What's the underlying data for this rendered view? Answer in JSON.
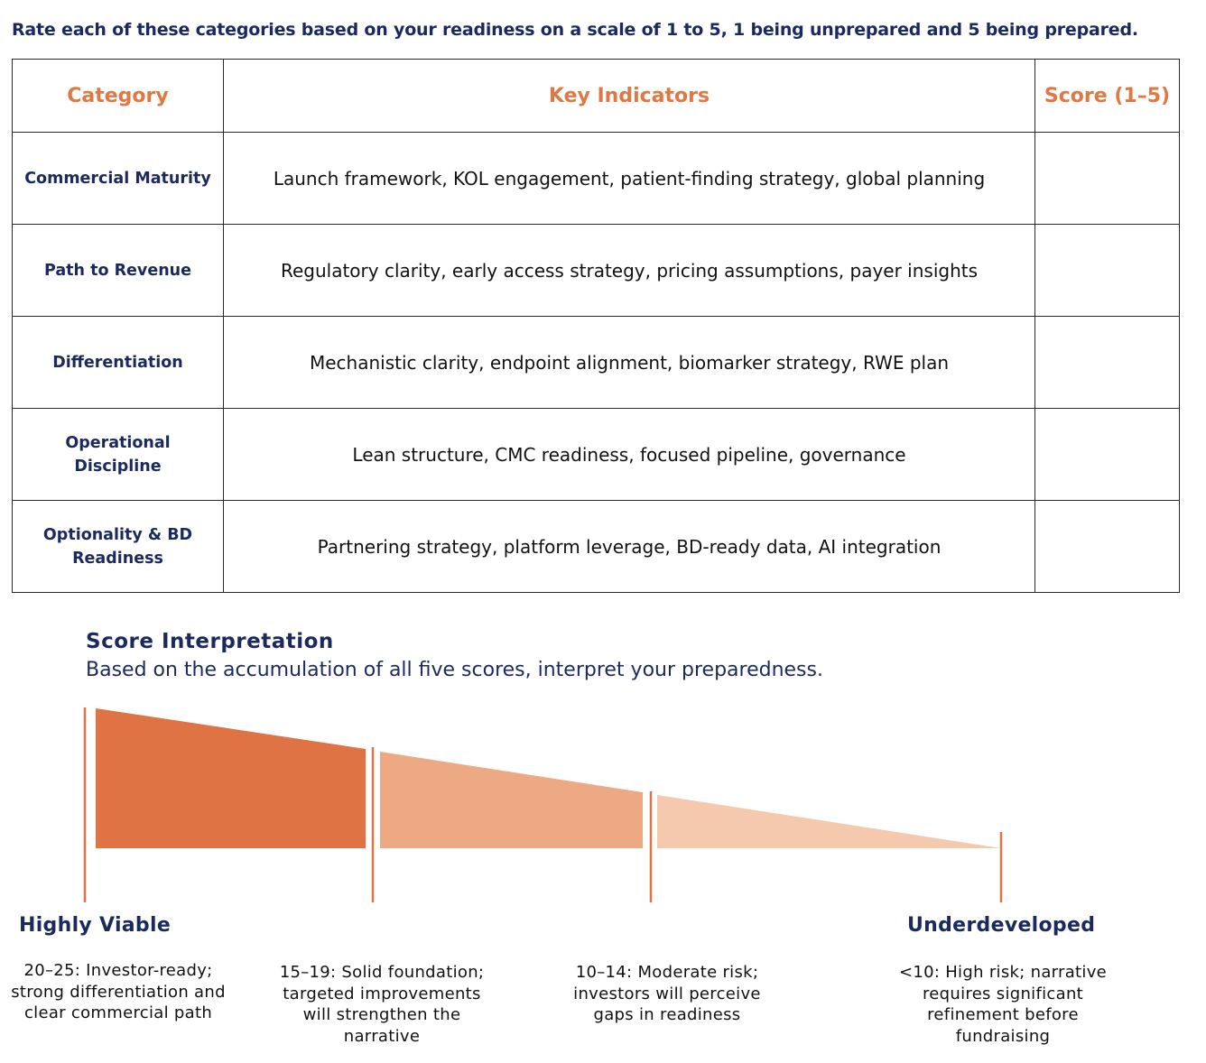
{
  "instruction": "Rate each of these categories based on your readiness on a scale of 1 to 5, 1 being unprepared and 5 being prepared.",
  "table": {
    "header": [
      "Category",
      "Key Indicators",
      "Score (1–5)"
    ],
    "rows": [
      [
        "Commercial Maturity",
        "Launch framework, KOL engagement, patient-finding strategy, global planning"
      ],
      [
        "Path to Revenue",
        "Regulatory clarity, early access strategy, pricing assumptions, payer insights"
      ],
      [
        "Differentiation",
        "Mechanistic clarity, endpoint alignment, biomarker strategy, RWE plan"
      ],
      [
        "Operational Discipline",
        "Lean structure, CMC readiness, focused pipeline, governance"
      ],
      [
        "Optionality & BD Readiness",
        "Partnering strategy, platform leverage, BD-ready data, AI integration"
      ]
    ]
  },
  "interpretation": {
    "title": "Score Interpretation",
    "subtitle": "Based on the accumulation of all five scores, interpret your preparedness.",
    "high_label": "Highly Viable",
    "low_label": "Underdeveloped",
    "descriptions": [
      "20–25: Investor-ready; strong differentiation and clear commercial path",
      "15–19: Solid foundation; targeted improvements will strengthen the narrative",
      "10–14: Moderate risk; investors will perceive gaps in readiness",
      "<10: High risk; narrative requires significant refinement before fundraising"
    ]
  }
}
